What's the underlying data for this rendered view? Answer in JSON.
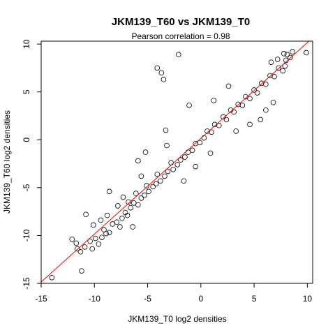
{
  "chart_data": {
    "type": "scatter",
    "title": "JKM139_T60 vs JKM139_T0",
    "subtitle": "Pearson correlation =  0.98",
    "xlabel": "JKM139_T0 log2 densities",
    "ylabel": "JKM139_T60 log2 densities",
    "xlim": [
      -15,
      10.5
    ],
    "ylim": [
      -15,
      10.3
    ],
    "xticks": [
      -15,
      -10,
      -5,
      0,
      5,
      10
    ],
    "yticks": [
      -15,
      -10,
      -5,
      0,
      5,
      10
    ],
    "xtick_labels": [
      "-15",
      "-10",
      "-5",
      "0",
      "5",
      "10"
    ],
    "ytick_labels": [
      "-15",
      "-10",
      "-5",
      "0",
      "5",
      "10"
    ],
    "grid": false,
    "point_color": "#000000",
    "fit_line": {
      "slope": 1.0,
      "intercept": 0.15,
      "color": "#ff0000"
    },
    "series": [
      {
        "points": [
          [
            -14.0,
            -14.4
          ],
          [
            -11.2,
            -13.7
          ],
          [
            -12.1,
            -10.4
          ],
          [
            -11.6,
            -11.4
          ],
          [
            -11.3,
            -11.7
          ],
          [
            -11.7,
            -10.8
          ],
          [
            -10.9,
            -11.2
          ],
          [
            -10.4,
            -10.6
          ],
          [
            -10.2,
            -11.4
          ],
          [
            -9.9,
            -10.3
          ],
          [
            -9.6,
            -10.9
          ],
          [
            -9.3,
            -10.2
          ],
          [
            -8.9,
            -9.8
          ],
          [
            -9.1,
            -9.4
          ],
          [
            -8.6,
            -9.7
          ],
          [
            -10.1,
            -8.9
          ],
          [
            -9.4,
            -8.4
          ],
          [
            -8.3,
            -8.8
          ],
          [
            -7.9,
            -8.6
          ],
          [
            -7.6,
            -9.1
          ],
          [
            -8.8,
            -7.9
          ],
          [
            -7.4,
            -8.2
          ],
          [
            -7.1,
            -7.6
          ],
          [
            -6.9,
            -7.9
          ],
          [
            -6.6,
            -7.1
          ],
          [
            -7.8,
            -6.9
          ],
          [
            -6.3,
            -6.6
          ],
          [
            -6.8,
            -6.5
          ],
          [
            -5.9,
            -6.8
          ],
          [
            -5.6,
            -6.1
          ],
          [
            -6.1,
            -5.6
          ],
          [
            -5.3,
            -5.8
          ],
          [
            -4.9,
            -5.4
          ],
          [
            -5.1,
            -4.8
          ],
          [
            -4.5,
            -4.9
          ],
          [
            -4.2,
            -4.6
          ],
          [
            -3.8,
            -4.3
          ],
          [
            -4.1,
            -3.6
          ],
          [
            -3.4,
            -3.8
          ],
          [
            -3.1,
            -3.3
          ],
          [
            -2.6,
            -3.1
          ],
          [
            -2.8,
            -2.4
          ],
          [
            -2.2,
            -2.6
          ],
          [
            -1.9,
            -2.1
          ],
          [
            -1.5,
            -1.8
          ],
          [
            -1.2,
            -1.3
          ],
          [
            -0.8,
            -1.1
          ],
          [
            -0.5,
            -0.4
          ],
          [
            -0.1,
            -0.3
          ],
          [
            0.3,
            0.2
          ],
          [
            0.6,
            0.9
          ],
          [
            1.0,
            0.8
          ],
          [
            1.3,
            1.6
          ],
          [
            1.7,
            1.5
          ],
          [
            2.1,
            2.4
          ],
          [
            2.4,
            2.1
          ],
          [
            2.8,
            3.1
          ],
          [
            3.1,
            2.9
          ],
          [
            3.5,
            3.7
          ],
          [
            3.9,
            3.6
          ],
          [
            4.2,
            4.5
          ],
          [
            4.6,
            4.3
          ],
          [
            5.0,
            5.2
          ],
          [
            5.3,
            4.9
          ],
          [
            5.7,
            5.9
          ],
          [
            6.1,
            5.8
          ],
          [
            6.5,
            6.7
          ],
          [
            6.9,
            6.6
          ],
          [
            7.3,
            7.5
          ],
          [
            7.7,
            7.2
          ],
          [
            8.0,
            8.3
          ],
          [
            8.4,
            8.6
          ],
          [
            7.2,
            8.4
          ],
          [
            7.8,
            9.0
          ],
          [
            8.6,
            9.2
          ],
          [
            9.9,
            9.1
          ],
          [
            8.1,
            8.9
          ],
          [
            6.6,
            8.1
          ],
          [
            7.9,
            7.7
          ],
          [
            -4.1,
            7.5
          ],
          [
            -3.7,
            7.0
          ],
          [
            -3.5,
            6.3
          ],
          [
            -2.1,
            8.9
          ],
          [
            -1.1,
            3.6
          ],
          [
            -3.3,
            1.0
          ],
          [
            -5.2,
            -1.3
          ],
          [
            -5.9,
            -2.2
          ],
          [
            5.6,
            2.1
          ],
          [
            4.6,
            1.6
          ],
          [
            6.1,
            3.1
          ],
          [
            -1.6,
            -4.3
          ],
          [
            -8.6,
            -5.4
          ],
          [
            -10.8,
            -7.8
          ],
          [
            -7.3,
            -6.0
          ],
          [
            -5.6,
            -3.8
          ],
          [
            -3.2,
            -0.6
          ],
          [
            2.6,
            5.6
          ],
          [
            1.2,
            4.1
          ],
          [
            6.8,
            3.9
          ],
          [
            -0.5,
            -2.8
          ],
          [
            0.9,
            -1.4
          ],
          [
            3.3,
            0.9
          ],
          [
            -6.4,
            -9.1
          ]
        ]
      }
    ]
  }
}
